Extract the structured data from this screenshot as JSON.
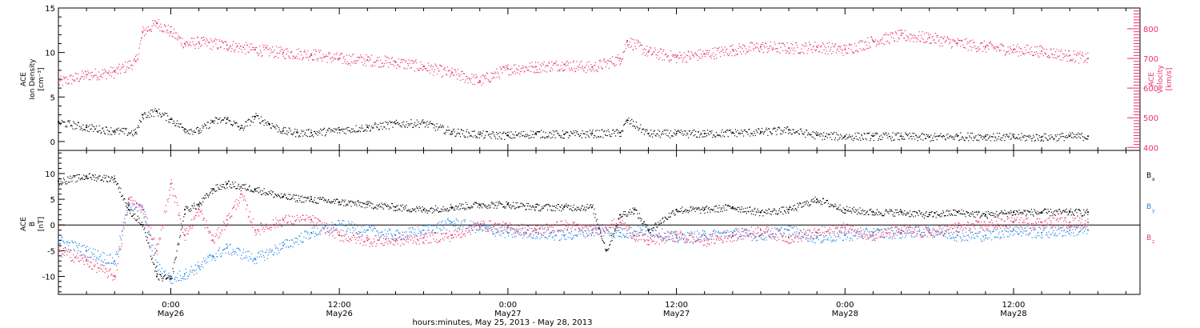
{
  "colors": {
    "black": "#000000",
    "pink": "#e8336a",
    "blue": "#1f84e6"
  },
  "x_axis": {
    "title": "hours:minutes, May 25, 2013 - May 28, 2013",
    "ticks": [
      {
        "t": 0,
        "time": "0:00",
        "date": "May26"
      },
      {
        "t": 12,
        "time": "12:00",
        "date": "May26"
      },
      {
        "t": 24,
        "time": "0:00",
        "date": "May27"
      },
      {
        "t": 36,
        "time": "12:00",
        "date": "May27"
      },
      {
        "t": 48,
        "time": "0:00",
        "date": "May28"
      },
      {
        "t": 60,
        "time": "12:00",
        "date": "May28"
      }
    ]
  },
  "panel1": {
    "left_label": [
      "ACE",
      "Ion Density",
      "[cm⁻³]"
    ],
    "right_label": [
      "ACE",
      "Velocity",
      "[km/s]"
    ]
  },
  "panel2": {
    "left_label": [
      "ACE",
      "B",
      "[nT]"
    ],
    "legend": [
      {
        "name": "B",
        "sub": "x",
        "color": "#000000"
      },
      {
        "name": "B",
        "sub": "y",
        "color": "#1f84e6"
      },
      {
        "name": "B",
        "sub": "z",
        "color": "#e8336a"
      }
    ]
  },
  "chart_data": [
    {
      "type": "scatter",
      "panel": "density_velocity",
      "x_unit": "hours since 2013-05-26 00:00 UT",
      "xlim": [
        -8,
        69
      ],
      "y_left": {
        "label": "ACE Ion Density [cm-3]",
        "ylim": [
          -1,
          15
        ],
        "ticks": [
          0,
          5,
          10,
          15
        ]
      },
      "y_right": {
        "label": "ACE Velocity [km/s]",
        "ylim": [
          390,
          870
        ],
        "ticks": [
          400,
          500,
          600,
          700,
          800
        ]
      },
      "series": [
        {
          "axis": "left",
          "color": "#000000",
          "x": [
            -8,
            -6,
            -4,
            -2.5,
            -2,
            -1,
            0,
            1,
            2,
            3,
            4,
            5,
            6,
            7,
            8,
            9,
            10,
            12,
            14,
            16,
            18,
            20,
            22,
            24,
            26,
            28,
            30,
            32,
            32.5,
            34,
            36,
            38,
            40,
            42,
            44,
            46,
            48,
            50,
            52,
            54,
            56,
            58,
            60,
            62,
            64,
            65.3
          ],
          "y": [
            2.2,
            1.6,
            1.2,
            1.0,
            3.0,
            3.4,
            2.5,
            1.4,
            1.2,
            2.3,
            2.5,
            1.5,
            2.8,
            2.0,
            1.2,
            1.0,
            1.0,
            1.3,
            1.6,
            2.0,
            2.1,
            1.1,
            0.8,
            0.7,
            0.9,
            0.8,
            0.9,
            1.0,
            2.4,
            0.9,
            0.9,
            0.9,
            1.0,
            1.1,
            1.3,
            0.7,
            0.6,
            0.6,
            0.6,
            0.5,
            0.6,
            0.6,
            0.5,
            0.5,
            0.6,
            0.6
          ]
        },
        {
          "axis": "right",
          "color": "#e8336a",
          "x": [
            -8,
            -6,
            -4,
            -2.5,
            -2,
            -1,
            0,
            1,
            2,
            4,
            6,
            8,
            10,
            12,
            14,
            16,
            18,
            20,
            22,
            24,
            26,
            28,
            30,
            32,
            32.5,
            34,
            36,
            38,
            40,
            42,
            44,
            46,
            48,
            50,
            52,
            54,
            56,
            58,
            60,
            62,
            64,
            65.3
          ],
          "y": [
            620,
            645,
            655,
            690,
            790,
            820,
            790,
            750,
            755,
            745,
            730,
            720,
            715,
            700,
            695,
            688,
            672,
            650,
            625,
            665,
            672,
            680,
            670,
            700,
            760,
            722,
            705,
            715,
            730,
            740,
            735,
            740,
            730,
            760,
            778,
            770,
            752,
            740,
            730,
            725,
            710,
            700
          ]
        }
      ]
    },
    {
      "type": "scatter",
      "panel": "magnetic_field",
      "x_unit": "hours since 2013-05-26 00:00 UT",
      "xlim": [
        -8,
        69
      ],
      "y": {
        "label": "ACE B [nT]",
        "ylim": [
          -13.5,
          14.5
        ],
        "ticks": [
          -10,
          -5,
          0,
          5,
          10
        ]
      },
      "reference_line": 0,
      "series": [
        {
          "name": "Bx",
          "color": "#000000",
          "x": [
            -8,
            -6,
            -4,
            -3,
            -2,
            -1,
            0,
            1,
            2,
            3,
            4,
            6,
            8,
            10,
            12,
            14,
            16,
            18,
            20,
            22,
            24,
            26,
            28,
            30,
            31,
            32,
            33,
            34,
            36,
            38,
            40,
            42,
            44,
            46,
            48,
            50,
            52,
            54,
            56,
            58,
            60,
            62,
            64,
            65.3
          ],
          "y": [
            8.5,
            9.5,
            9.0,
            3.0,
            0.0,
            -10.0,
            -10.5,
            3.0,
            4.0,
            7.0,
            8.0,
            7.0,
            5.5,
            5.0,
            4.5,
            4.0,
            3.5,
            3.0,
            3.5,
            4.0,
            4.0,
            3.5,
            3.5,
            3.5,
            -5.0,
            2.0,
            3.0,
            -1.0,
            3.0,
            3.0,
            3.5,
            2.5,
            3.0,
            5.0,
            3.0,
            2.5,
            2.5,
            2.0,
            2.5,
            2.0,
            2.5,
            2.5,
            2.5,
            2.5
          ]
        },
        {
          "name": "By",
          "color": "#1f84e6",
          "x": [
            -8,
            -6,
            -4,
            -3,
            -2,
            -1,
            0,
            1,
            2,
            3,
            4,
            6,
            8,
            10,
            12,
            14,
            16,
            18,
            20,
            22,
            24,
            26,
            28,
            30,
            32,
            34,
            36,
            38,
            40,
            42,
            44,
            46,
            48,
            50,
            52,
            54,
            56,
            58,
            60,
            62,
            64,
            65.3
          ],
          "y": [
            -3.0,
            -5.0,
            -7.0,
            4.0,
            3.0,
            -8.0,
            -10.5,
            -9.5,
            -8.0,
            -6.0,
            -4.5,
            -6.5,
            -4.0,
            -1.5,
            0.0,
            -1.0,
            -2.0,
            -1.0,
            0.5,
            -0.5,
            -1.5,
            -1.5,
            -2.0,
            -1.0,
            -1.5,
            -1.0,
            -2.5,
            -2.0,
            -1.5,
            -2.0,
            -1.0,
            -2.5,
            -2.0,
            -1.5,
            -1.5,
            -1.0,
            -2.0,
            -2.0,
            -1.0,
            -1.5,
            -1.0,
            -1.0
          ]
        },
        {
          "name": "Bz",
          "color": "#e8336a",
          "x": [
            -8,
            -6,
            -4,
            -3,
            -2,
            -1,
            0,
            1,
            2,
            3,
            4,
            5,
            6,
            8,
            10,
            12,
            14,
            16,
            18,
            20,
            22,
            24,
            26,
            28,
            30,
            32,
            33,
            34,
            36,
            38,
            40,
            42,
            44,
            46,
            48,
            50,
            52,
            54,
            56,
            58,
            60,
            62,
            64,
            65.3
          ],
          "y": [
            -5.0,
            -7.0,
            -10.0,
            5.0,
            3.0,
            -5.0,
            8.0,
            -2.0,
            3.0,
            -3.0,
            1.0,
            6.0,
            -1.0,
            1.0,
            1.0,
            -2.0,
            -3.0,
            -3.0,
            -2.5,
            -2.0,
            0.0,
            -0.5,
            -1.0,
            0.0,
            -1.0,
            0.5,
            -2.0,
            -3.0,
            -2.0,
            -3.0,
            -2.0,
            -1.0,
            -2.5,
            -1.5,
            -0.5,
            -2.0,
            -1.0,
            -1.5,
            -0.5,
            0.0,
            0.5,
            0.5,
            0.5,
            0.5
          ]
        }
      ]
    }
  ]
}
